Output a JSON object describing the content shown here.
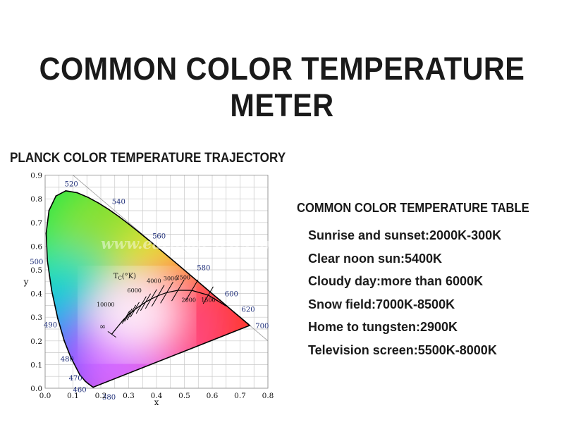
{
  "title": "COMMON COLOR TEMPERATURE METER",
  "diagram": {
    "title": "PLANCK COLOR TEMPERATURE TRAJECTORY",
    "watermark": "www.earlight-led.com",
    "xlabel": "x",
    "ylabel": "y",
    "x_ticks": [
      "0.0",
      "0.1",
      "0.2",
      "0.3",
      "0.4",
      "0.5",
      "0.6",
      "0.7",
      "0.8"
    ],
    "y_ticks": [
      "0.0",
      "0.1",
      "0.2",
      "0.3",
      "0.4",
      "0.5",
      "0.6",
      "0.7",
      "0.8",
      "0.9"
    ],
    "wavelength_labels": [
      "380",
      "460",
      "470",
      "480",
      "490",
      "500",
      "520",
      "540",
      "560",
      "580",
      "600",
      "620",
      "700"
    ],
    "tc_label": "T",
    "tc_sub": "C",
    "tc_unit": "(°K)",
    "temperature_labels": [
      "10000",
      "6000",
      "4000",
      "3000",
      "2500",
      "2000",
      "1500",
      "∞"
    ],
    "colors": {
      "locus_stroke": "#000000",
      "grid": "#c8c8c8",
      "wavelength_text": "#1f2f7a"
    }
  },
  "table": {
    "title": "COMMON COLOR TEMPERATURE TABLE",
    "rows": [
      "Sunrise and sunset:2000K-300K",
      "Clear noon sun:5400K",
      "Cloudy day:more than 6000K",
      "Snow field:7000K-8500K",
      "Home to tungsten:2900K",
      "Television screen:5500K-8000K"
    ]
  }
}
